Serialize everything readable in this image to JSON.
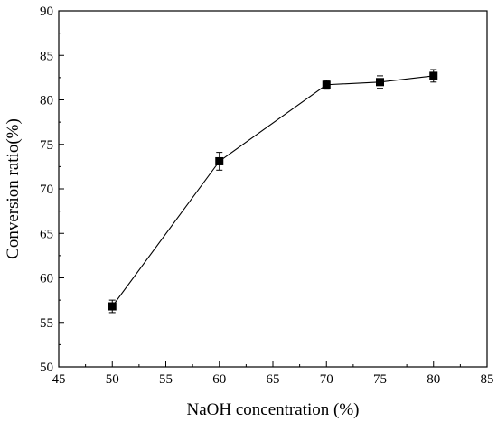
{
  "chart_data": {
    "type": "scatter",
    "title": "",
    "xlabel": "NaOH concentration (%)",
    "ylabel": "Conversion ratio(%)",
    "xlim": [
      45,
      85
    ],
    "ylim": [
      50,
      90
    ],
    "xticks": [
      45,
      50,
      55,
      60,
      65,
      70,
      75,
      80,
      85
    ],
    "yticks": [
      50,
      55,
      60,
      65,
      70,
      75,
      80,
      85,
      90
    ],
    "grid": false,
    "legend": "none",
    "connected": true,
    "marker": "square",
    "series": [
      {
        "x": [
          50,
          60,
          70,
          75,
          80
        ],
        "y": [
          56.8,
          73.1,
          81.7,
          82.0,
          82.7
        ],
        "error": [
          0.7,
          1.0,
          0.5,
          0.7,
          0.7
        ]
      }
    ],
    "color": "#000000"
  }
}
